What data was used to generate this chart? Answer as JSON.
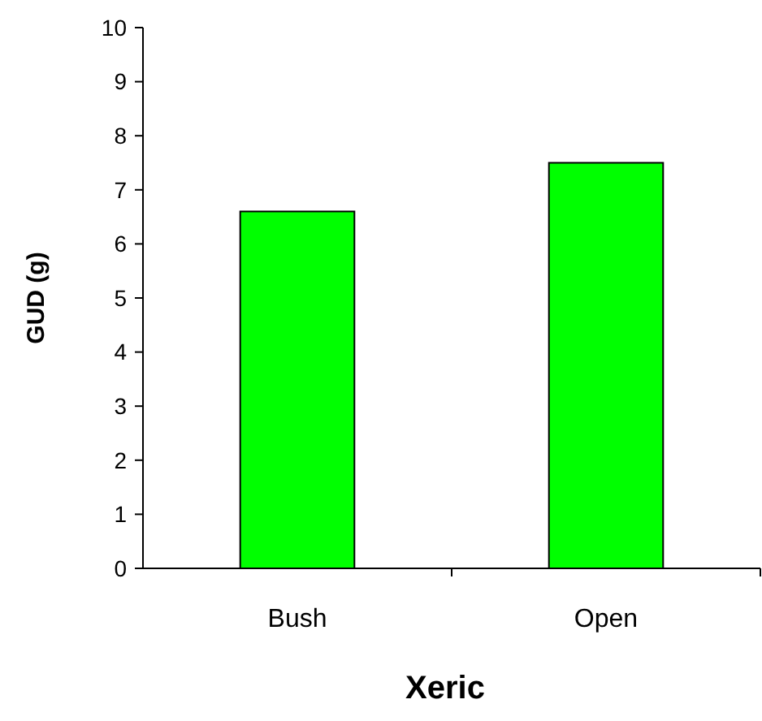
{
  "chart_data": {
    "type": "bar",
    "xlabel": "Xeric",
    "ylabel": "GUD (g)",
    "categories": [
      "Bush",
      "Open"
    ],
    "series": [
      {
        "color": "#00ff00",
        "values": [
          6.6,
          7.5
        ]
      }
    ],
    "ylim": [
      0,
      10
    ],
    "yticks": [
      0,
      1,
      2,
      3,
      4,
      5,
      6,
      7,
      8,
      9,
      10
    ],
    "grid": false
  }
}
